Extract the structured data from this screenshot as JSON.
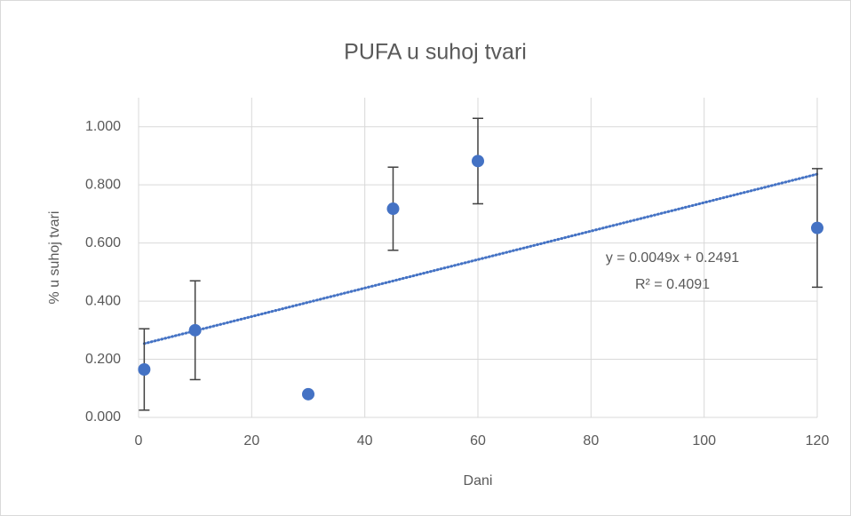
{
  "chart_data": {
    "type": "scatter",
    "title": "PUFA u suhoj tvari",
    "xlabel": "Dani",
    "ylabel": "% u suhoj tvari",
    "x": [
      1,
      10,
      30,
      45,
      60,
      120
    ],
    "series": [
      {
        "color": "#4472c4",
        "values": [
          0.165,
          0.3,
          0.08,
          0.718,
          0.882,
          0.652
        ],
        "errors": [
          0.14,
          0.17,
          0.005,
          0.143,
          0.147,
          0.204
        ]
      }
    ],
    "trendline": {
      "slope": 0.0049,
      "intercept": 0.2491,
      "color": "#4472c4"
    },
    "annotations": [
      "y = 0.0049x + 0.2491",
      "R² = 0.4091"
    ],
    "xlim": [
      0,
      120
    ],
    "xticks": [
      0,
      20,
      40,
      60,
      80,
      100,
      120
    ],
    "ylim": [
      0,
      1.1
    ],
    "yticks": [
      {
        "value": 0,
        "label": "0.000"
      },
      {
        "value": 0.2,
        "label": "0.200"
      },
      {
        "value": 0.4,
        "label": "0.400"
      },
      {
        "value": 0.6,
        "label": "0.600"
      },
      {
        "value": 0.8,
        "label": "0.800"
      },
      {
        "value": 1.0,
        "label": "1.000"
      }
    ],
    "grid": true
  }
}
